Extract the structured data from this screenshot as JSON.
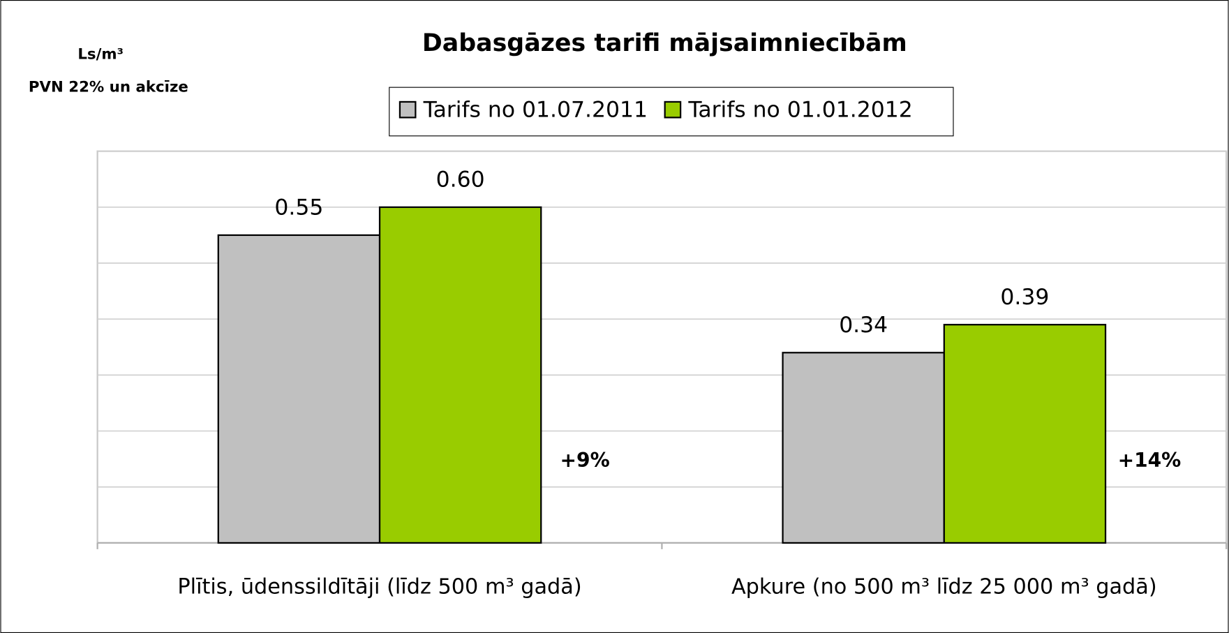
{
  "chart_data": {
    "type": "bar",
    "title": "Dabasgāzes tarifi mājsaimniecībām",
    "y_unit": "Ls/m³",
    "y_note": "PVN 22% un akcīze",
    "categories": [
      "Plītis, ūdenssildītāji (līdz 500 m³ gadā)",
      "Apkure (no 500 m³ līdz 25 000 m³ gadā)"
    ],
    "series": [
      {
        "name": "Tarifs no 01.07.2011",
        "color": "#c0c0c0",
        "values": [
          0.55,
          0.34
        ],
        "value_labels": [
          "0.55",
          "0.34"
        ]
      },
      {
        "name": "Tarifs no 01.01.2012",
        "color": "#99cc00",
        "values": [
          0.6,
          0.39
        ],
        "value_labels": [
          "0.60",
          "0.39"
        ]
      }
    ],
    "annotations": [
      "+9%",
      "+14%"
    ],
    "ylim": [
      0,
      0.7
    ],
    "yticks": [
      0,
      0.1,
      0.2,
      0.3,
      0.4,
      0.5,
      0.6,
      0.7
    ],
    "grid": true
  }
}
